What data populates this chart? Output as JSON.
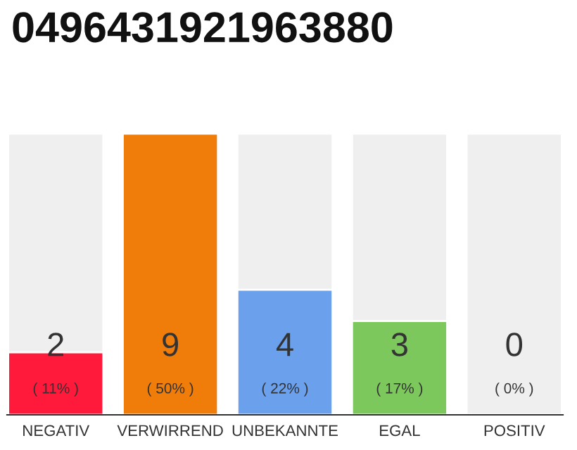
{
  "chart_data": {
    "type": "bar",
    "title": "0496431921963880",
    "categories": [
      "NEGATIV",
      "VERWIRREND",
      "UNBEKANNTE",
      "EGAL",
      "POSITIV"
    ],
    "values": [
      2,
      9,
      4,
      3,
      0
    ],
    "colors": [
      "#ff1a3c",
      "#f07c0a",
      "#6aa0ec",
      "#7cc85c",
      null
    ],
    "value_labels": [
      "2\n( 11% )",
      "9\n( 50% )",
      "4\n( 22% )",
      "3\n( 17% )",
      "0\n( 0% )"
    ],
    "grid": false,
    "legend": false
  }
}
